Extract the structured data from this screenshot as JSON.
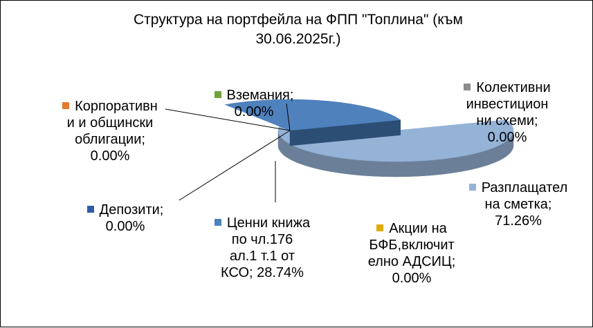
{
  "chart_data": {
    "type": "pie",
    "title": "Структура  на портфейла на ФПП \"Топлина\" (към 30.06.2025г.)",
    "slices": [
      {
        "name": "Разплащателна сметка",
        "value": 71.26,
        "label_text": "Разплащател\nна сметка;\n71.26%",
        "color": "#95b3d7"
      },
      {
        "name": "Ценни книжа по чл.176 ал.1 т.1 от КСО",
        "value": 28.74,
        "label_text": "Ценни книжа\nпо чл.176\nал.1 т.1 от\nКСО; 28.74%",
        "color": "#4f81bd"
      },
      {
        "name": "Депозити",
        "value": 0.0,
        "label_text": "Депозити;\n0.00%",
        "color": "#2e5ca8"
      },
      {
        "name": "Корпоративни и общински облигации",
        "value": 0.0,
        "label_text": "Корпоративн\nи и общински\nоблигации;\n0.00%",
        "color": "#e07a2f"
      },
      {
        "name": "Вземания",
        "value": 0.0,
        "label_text": "Вземания;\n0.00%",
        "color": "#70a33a"
      },
      {
        "name": "Колективни инвестиционни схеми",
        "value": 0.0,
        "label_text": "Колективни\nинвестицион\nни схеми;\n0.00%",
        "color": "#8c8c8c"
      },
      {
        "name": "Акции на БФБ,включително АДСИЦ",
        "value": 0.0,
        "label_text": "Акции на\nБФБ,включит\nелно АДСИЦ;\n0.00%",
        "color": "#e0aa00"
      }
    ]
  }
}
